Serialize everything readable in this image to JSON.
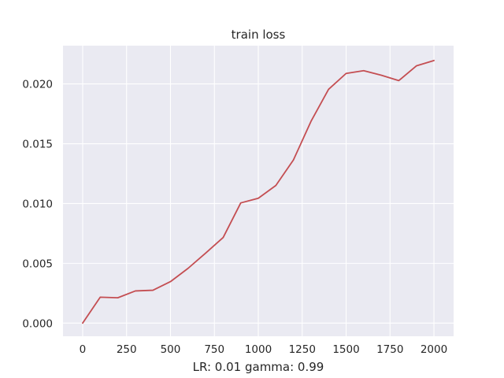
{
  "chart_data": {
    "type": "line",
    "title": "train loss",
    "xlabel": "LR: 0.01 gamma: 0.99",
    "ylabel": "",
    "xlim": [
      -112,
      2112
    ],
    "ylim": [
      -0.0011,
      0.0232
    ],
    "xticks": [
      0,
      250,
      500,
      750,
      1000,
      1250,
      1500,
      1750,
      2000
    ],
    "xtick_labels": [
      "0",
      "250",
      "500",
      "750",
      "1000",
      "1250",
      "1500",
      "1750",
      "2000"
    ],
    "yticks": [
      0.0,
      0.005,
      0.01,
      0.015,
      0.02
    ],
    "ytick_labels": [
      "0.000",
      "0.005",
      "0.010",
      "0.015",
      "0.020"
    ],
    "grid": true,
    "background": "#eaeaf2",
    "grid_color": "#ffffff",
    "series": [
      {
        "color": "#c44e52",
        "x": [
          0,
          100,
          200,
          300,
          400,
          500,
          600,
          700,
          800,
          900,
          1000,
          1100,
          1200,
          1300,
          1400,
          1500,
          1600,
          1700,
          1800,
          1900,
          2000
        ],
        "y": [
          0.0,
          0.00217,
          0.00212,
          0.00269,
          0.00275,
          0.00347,
          0.00458,
          0.00585,
          0.00716,
          0.01005,
          0.01044,
          0.01151,
          0.01364,
          0.01687,
          0.01955,
          0.02088,
          0.02111,
          0.02073,
          0.02028,
          0.02151,
          0.02196
        ]
      }
    ]
  }
}
